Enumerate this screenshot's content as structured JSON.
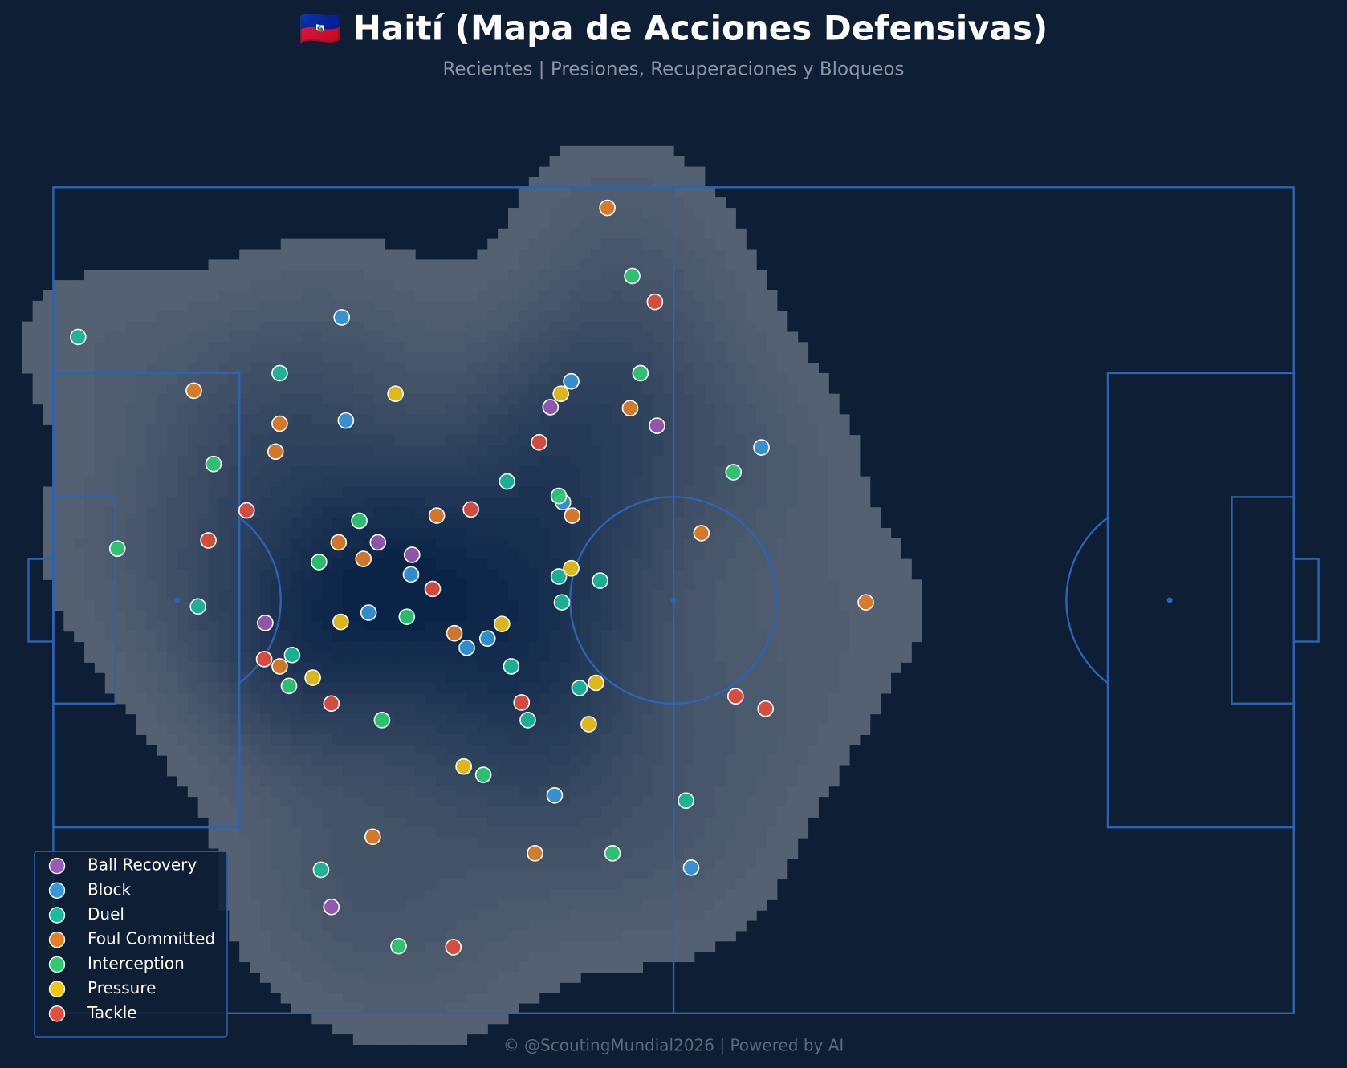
{
  "chart_data": {
    "type": "scatter",
    "title": "🇭🇹 Haití (Mapa de Acciones Defensivas)",
    "subtitle": "Recientes | Presiones, Recuperaciones y Bloqueos",
    "footer": "© @ScoutingMundial2026 | Powered by AI",
    "xlim": [
      0,
      120
    ],
    "ylim": [
      80,
      0
    ],
    "legend": "lower left",
    "density": true,
    "series": [
      {
        "name": "Ball Recovery",
        "color": "#9b59b6",
        "x": [
          48.1,
          58.4,
          31.4,
          34.7,
          20.5,
          26.9
        ],
        "y": [
          21.3,
          23.1,
          34.4,
          35.6,
          42.2,
          69.7
        ]
      },
      {
        "name": "Block",
        "color": "#3498db",
        "x": [
          27.9,
          50.1,
          28.3,
          68.5,
          49.3,
          34.6,
          30.5,
          42.0,
          40.0,
          48.5,
          61.7
        ],
        "y": [
          12.6,
          18.8,
          22.6,
          25.2,
          30.5,
          37.5,
          41.2,
          43.7,
          44.6,
          58.9,
          65.9
        ]
      },
      {
        "name": "Duel",
        "color": "#1abc9c",
        "x": [
          2.4,
          21.9,
          43.9,
          48.9,
          52.9,
          49.2,
          14.0,
          23.1,
          44.3,
          50.9,
          45.9,
          61.2,
          25.9
        ],
        "y": [
          14.5,
          18.0,
          28.5,
          37.7,
          38.1,
          40.2,
          40.6,
          45.3,
          46.4,
          48.5,
          51.6,
          59.4,
          66.1
        ]
      },
      {
        "name": "Foul Committed",
        "color": "#e67e22",
        "x": [
          53.6,
          13.6,
          21.9,
          55.8,
          21.5,
          37.1,
          50.2,
          27.6,
          30.0,
          62.7,
          78.6,
          38.8,
          21.9,
          30.9,
          46.6
        ],
        "y": [
          2.0,
          19.7,
          22.9,
          21.4,
          25.6,
          31.8,
          31.8,
          34.4,
          36.0,
          33.5,
          40.2,
          43.2,
          46.4,
          62.9,
          64.5
        ]
      },
      {
        "name": "Interception",
        "color": "#2ecc71",
        "x": [
          56.0,
          56.8,
          15.5,
          65.8,
          48.9,
          29.6,
          6.2,
          25.7,
          34.2,
          22.8,
          31.8,
          41.6,
          54.1,
          33.4
        ],
        "y": [
          8.6,
          18.0,
          26.8,
          27.6,
          29.9,
          32.3,
          35.0,
          36.3,
          41.6,
          48.3,
          51.6,
          56.9,
          64.5,
          73.5
        ]
      },
      {
        "name": "Pressure",
        "color": "#f1c40f",
        "x": [
          33.1,
          49.1,
          50.1,
          27.8,
          43.4,
          25.1,
          52.5,
          51.8,
          39.7
        ],
        "y": [
          20.0,
          20.0,
          36.9,
          42.1,
          42.3,
          47.5,
          48.0,
          52.0,
          56.1
        ]
      },
      {
        "name": "Tackle",
        "color": "#e74c3c",
        "x": [
          58.2,
          47.0,
          40.4,
          18.7,
          15.0,
          36.7,
          20.4,
          26.9,
          45.3,
          66.0,
          68.9,
          38.7
        ],
        "y": [
          11.1,
          24.7,
          31.2,
          31.3,
          34.2,
          38.9,
          45.7,
          50.0,
          49.9,
          49.3,
          50.5,
          73.6
        ]
      }
    ]
  }
}
